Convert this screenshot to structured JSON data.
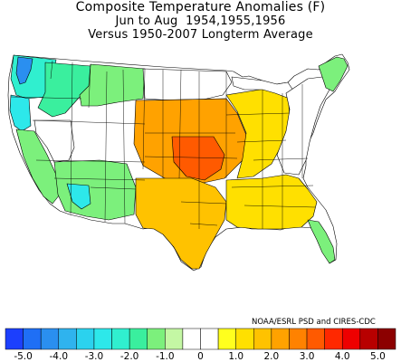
{
  "title": {
    "line1": "Composite Temperature Anomalies (F)",
    "line2": "Jun to Aug  1954,1955,1956",
    "line3": "Versus 1950-2007 Longterm Average"
  },
  "credit": "NOAA/ESRL PSD and CIRES-CDC",
  "legend": {
    "unit": "F",
    "bins": [
      {
        "lo": -5.5,
        "hi": -5.0,
        "color": "#1c3ffd"
      },
      {
        "lo": -5.0,
        "hi": -4.5,
        "color": "#1f6ff5"
      },
      {
        "lo": -4.5,
        "hi": -4.0,
        "color": "#2a8ff0"
      },
      {
        "lo": -4.0,
        "hi": -3.5,
        "color": "#2fb3ee"
      },
      {
        "lo": -3.5,
        "hi": -3.0,
        "color": "#2bd2ee"
      },
      {
        "lo": -3.0,
        "hi": -2.5,
        "color": "#2de8ea"
      },
      {
        "lo": -2.5,
        "hi": -2.0,
        "color": "#30efcf"
      },
      {
        "lo": -2.0,
        "hi": -1.5,
        "color": "#3aef9e"
      },
      {
        "lo": -1.5,
        "hi": -1.0,
        "color": "#7cf07c"
      },
      {
        "lo": -1.0,
        "hi": -0.5,
        "color": "#c4f7a4"
      },
      {
        "lo": -0.5,
        "hi": 0.0,
        "color": "#ffffff"
      },
      {
        "lo": 0.0,
        "hi": 0.5,
        "color": "#ffffff"
      },
      {
        "lo": 0.5,
        "hi": 1.0,
        "color": "#ffff1e"
      },
      {
        "lo": 1.0,
        "hi": 1.5,
        "color": "#ffe000"
      },
      {
        "lo": 1.5,
        "hi": 2.0,
        "color": "#ffc200"
      },
      {
        "lo": 2.0,
        "hi": 2.5,
        "color": "#ffa200"
      },
      {
        "lo": 2.5,
        "hi": 3.0,
        "color": "#ff8200"
      },
      {
        "lo": 3.0,
        "hi": 3.5,
        "color": "#ff5a00"
      },
      {
        "lo": 3.5,
        "hi": 4.0,
        "color": "#ff2800"
      },
      {
        "lo": 4.0,
        "hi": 4.5,
        "color": "#ee0000"
      },
      {
        "lo": 4.5,
        "hi": 5.0,
        "color": "#b80000"
      },
      {
        "lo": 5.0,
        "hi": 5.5,
        "color": "#8c0000"
      }
    ],
    "ticks": [
      {
        "value": -5.0,
        "label": "-5.0"
      },
      {
        "value": -4.0,
        "label": "-4.0"
      },
      {
        "value": -3.0,
        "label": "-3.0"
      },
      {
        "value": -2.0,
        "label": "-2.0"
      },
      {
        "value": -1.0,
        "label": "-1.0"
      },
      {
        "value": 0.0,
        "label": "0"
      },
      {
        "value": 1.0,
        "label": "1.0"
      },
      {
        "value": 2.0,
        "label": "2.0"
      },
      {
        "value": 3.0,
        "label": "3.0"
      },
      {
        "value": 4.0,
        "label": "4.0"
      },
      {
        "value": 5.0,
        "label": "5.0"
      }
    ]
  },
  "map": {
    "land_color": "#ffffff",
    "water_color": "#ffffff",
    "border_color": "#000000",
    "regions": [
      {
        "id": "pacific-northwest-coast",
        "anomaly": -2.5
      },
      {
        "id": "puget-sound",
        "anomaly": -4.5
      },
      {
        "id": "oregon-coast",
        "anomaly": -3.0
      },
      {
        "id": "interior-northwest",
        "anomaly": -2.0
      },
      {
        "id": "idaho-montana",
        "anomaly": -1.5
      },
      {
        "id": "california",
        "anomaly": -1.5
      },
      {
        "id": "great-basin",
        "anomaly": -0.3
      },
      {
        "id": "southwest",
        "anomaly": -1.5
      },
      {
        "id": "arizona-central",
        "anomaly": -2.7
      },
      {
        "id": "northern-plains",
        "anomaly": 0.2
      },
      {
        "id": "central-plains",
        "anomaly": 2.3
      },
      {
        "id": "kansas-oklahoma-core",
        "anomaly": 3.2
      },
      {
        "id": "texas",
        "anomaly": 1.5
      },
      {
        "id": "midwest",
        "anomaly": 1.3
      },
      {
        "id": "great-lakes",
        "anomaly": 0.4
      },
      {
        "id": "southeast",
        "anomaly": 1.0
      },
      {
        "id": "northeast",
        "anomaly": 0.1
      },
      {
        "id": "new-england-coast",
        "anomaly": -1.2
      },
      {
        "id": "florida",
        "anomaly": -1.3
      }
    ]
  }
}
